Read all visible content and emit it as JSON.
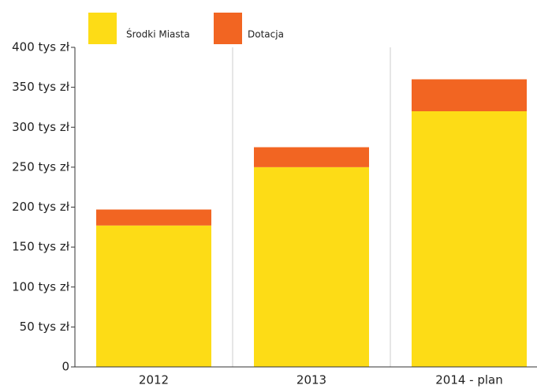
{
  "chart_data": {
    "type": "stacked_bar",
    "categories": [
      "2012",
      "2013",
      "2014 - plan"
    ],
    "series": [
      {
        "name": "Środki Miasta",
        "color": "#fddc16",
        "values": [
          177,
          250,
          320
        ]
      },
      {
        "name": "Dotacja",
        "color": "#f26522",
        "values": [
          20,
          25,
          40
        ]
      }
    ],
    "ylim": [
      0,
      400
    ],
    "yticks": [
      0,
      {
        "value": 50,
        "label": "50 tys zł"
      },
      {
        "value": 100,
        "label": "100 tys zł"
      },
      {
        "value": 150,
        "label": "150 tys zł"
      },
      {
        "value": 200,
        "label": "200 tys zł"
      },
      {
        "value": 250,
        "label": "250 tys zł"
      },
      {
        "value": 300,
        "label": "300 tys zł"
      },
      {
        "value": 350,
        "label": "350 tys zł"
      },
      {
        "value": 400,
        "label": "400 tys zł"
      }
    ],
    "legend": "top"
  }
}
